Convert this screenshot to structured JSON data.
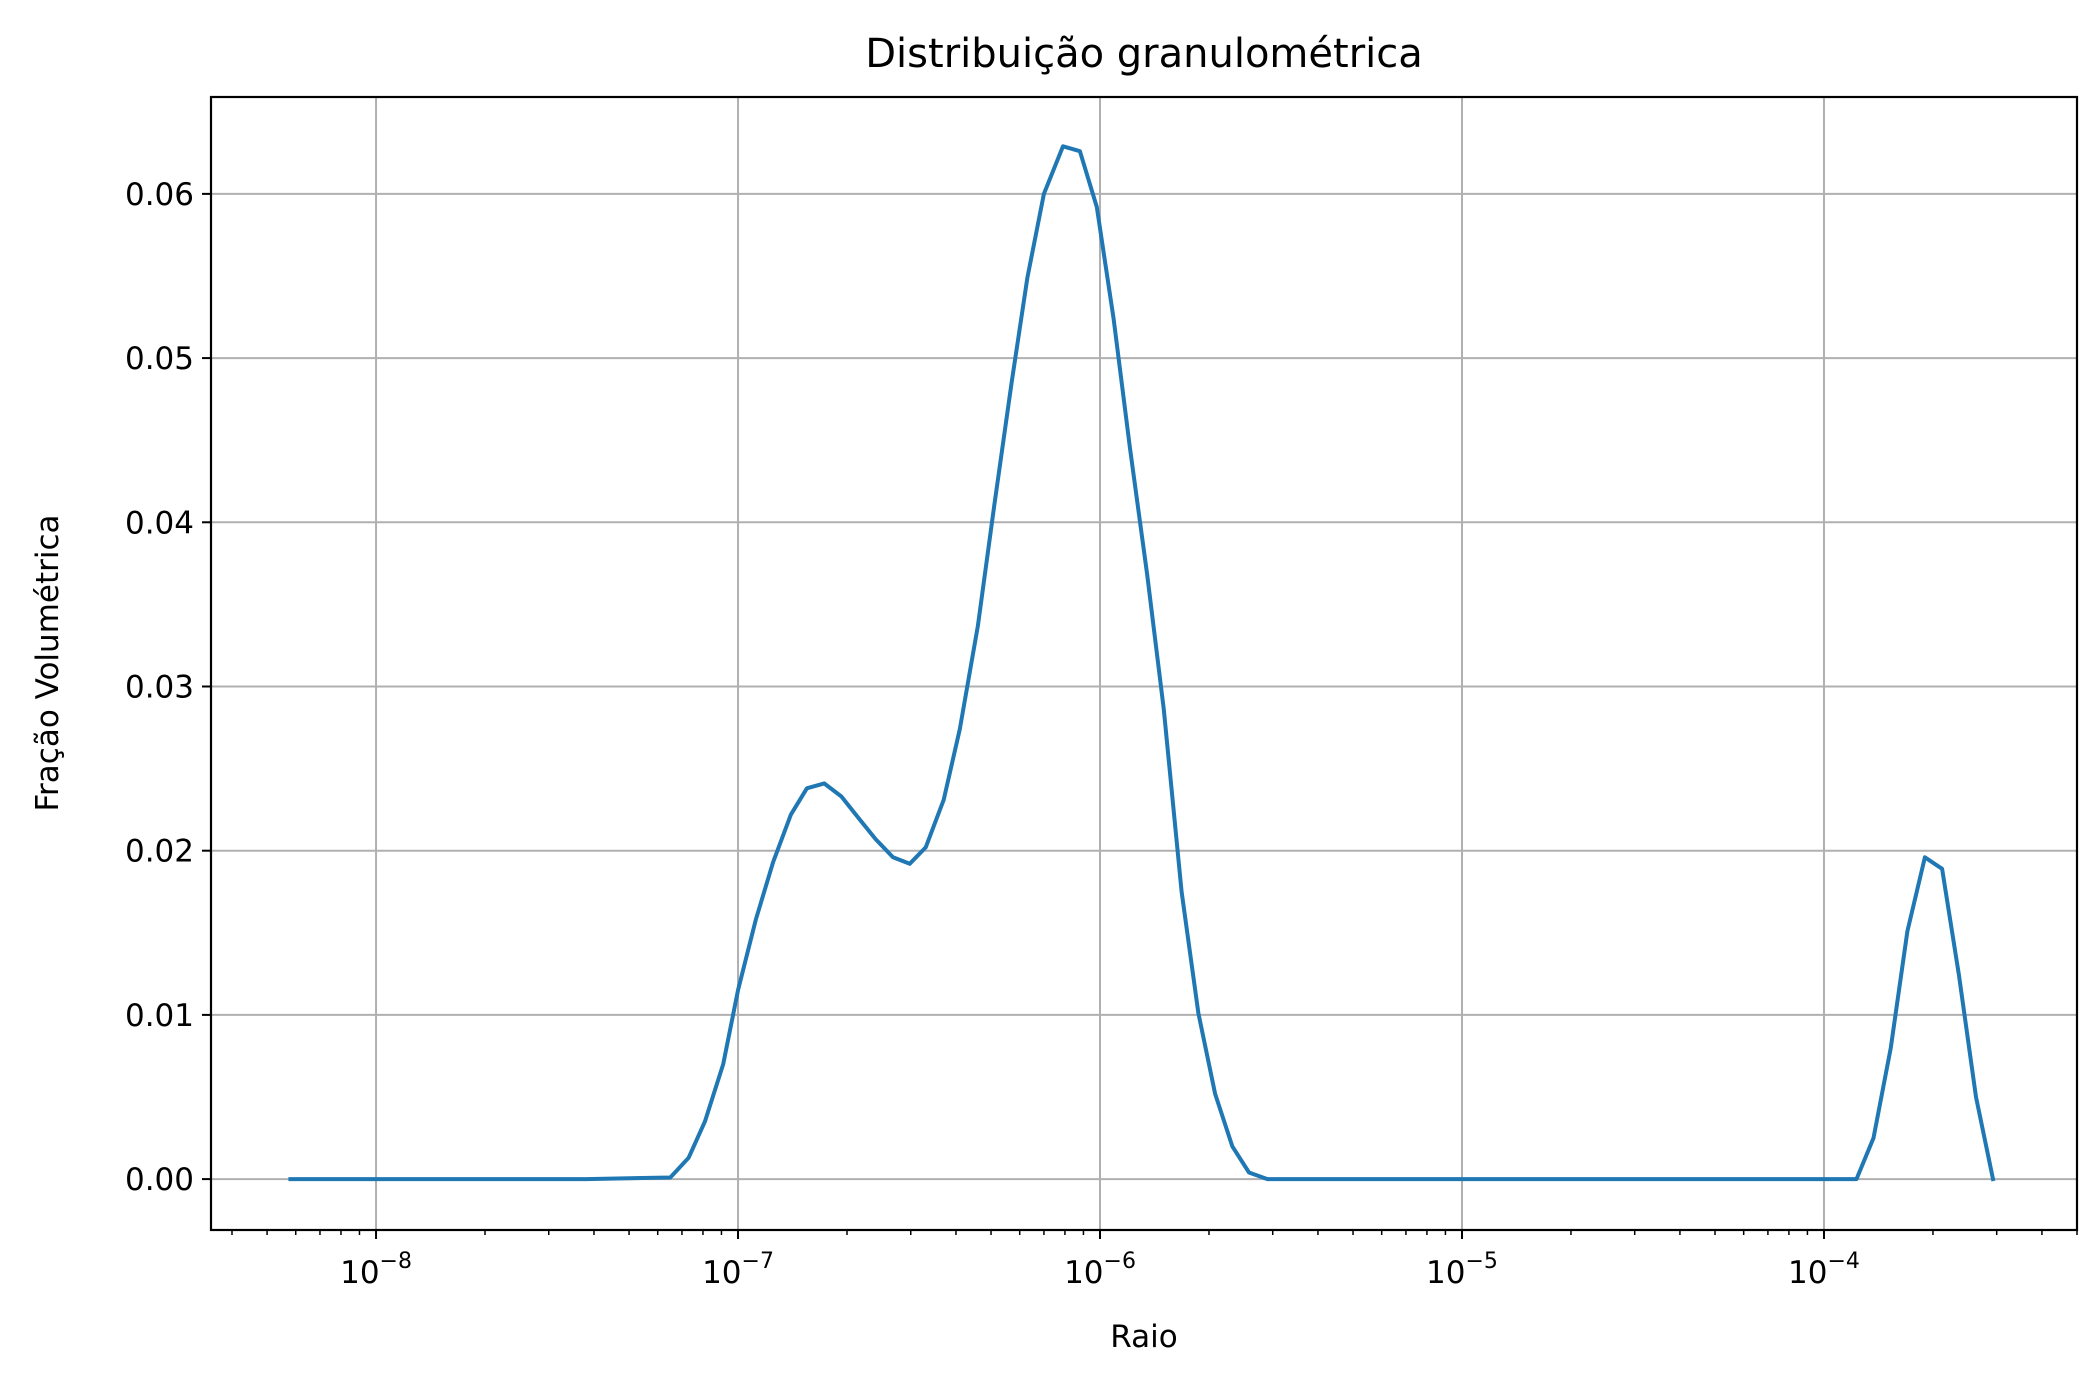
{
  "chart_data": {
    "type": "line",
    "title": "Distribuição granulométrica",
    "xlabel": "Raio",
    "ylabel": "Fração Volumétrica",
    "xscale": "log",
    "xlim": [
      3.5e-09,
      0.0005
    ],
    "ylim": [
      -0.0031,
      0.0659
    ],
    "grid": true,
    "line_color": "#1f77b4",
    "x_ticks": [
      {
        "base": "10",
        "exp": "−8",
        "value": 1e-08
      },
      {
        "base": "10",
        "exp": "−7",
        "value": 1e-07
      },
      {
        "base": "10",
        "exp": "−6",
        "value": 1e-06
      },
      {
        "base": "10",
        "exp": "−5",
        "value": 1e-05
      },
      {
        "base": "10",
        "exp": "−4",
        "value": 0.0001
      }
    ],
    "y_ticks": [
      {
        "label": "0.00",
        "value": 0.0
      },
      {
        "label": "0.01",
        "value": 0.01
      },
      {
        "label": "0.02",
        "value": 0.02
      },
      {
        "label": "0.03",
        "value": 0.03
      },
      {
        "label": "0.04",
        "value": 0.04
      },
      {
        "label": "0.05",
        "value": 0.05
      },
      {
        "label": "0.06",
        "value": 0.06
      }
    ],
    "series": [
      {
        "x": [
          5.8e-09,
          1e-08,
          3.8e-08,
          6.5e-08,
          7.3e-08,
          8.1e-08,
          9.1e-08,
          1e-07,
          1.12e-07,
          1.25e-07,
          1.4e-07,
          1.55e-07,
          1.73e-07,
          1.93e-07,
          2.15e-07,
          2.4e-07,
          2.68e-07,
          2.98e-07,
          3.3e-07,
          3.7e-07,
          4.1e-07,
          4.6e-07,
          5.1e-07,
          5.7e-07,
          6.3e-07,
          7e-07,
          7.9e-07,
          8.8e-07,
          9.8e-07,
          1.09e-06,
          1.21e-06,
          1.35e-06,
          1.5e-06,
          1.68e-06,
          1.87e-06,
          2.08e-06,
          2.32e-06,
          2.58e-06,
          2.9e-06,
          1e-05,
          0.0001,
          0.000123,
          0.000137,
          0.000153,
          0.00017,
          0.00019,
          0.000212,
          0.000236,
          0.000263,
          0.000293
        ],
        "y": [
          0.0,
          0.0,
          0.0,
          0.0001,
          0.0013,
          0.0035,
          0.007,
          0.0115,
          0.0158,
          0.0193,
          0.0222,
          0.0238,
          0.0241,
          0.0233,
          0.022,
          0.0207,
          0.0196,
          0.0192,
          0.0202,
          0.0231,
          0.0274,
          0.0337,
          0.041,
          0.0485,
          0.0549,
          0.06,
          0.0629,
          0.0626,
          0.0592,
          0.0524,
          0.0445,
          0.0368,
          0.0286,
          0.0175,
          0.0101,
          0.0052,
          0.002,
          0.0004,
          0.0,
          0.0,
          0.0,
          0.0,
          0.0025,
          0.008,
          0.0151,
          0.0196,
          0.0189,
          0.0124,
          0.005,
          0.0
        ]
      }
    ]
  }
}
